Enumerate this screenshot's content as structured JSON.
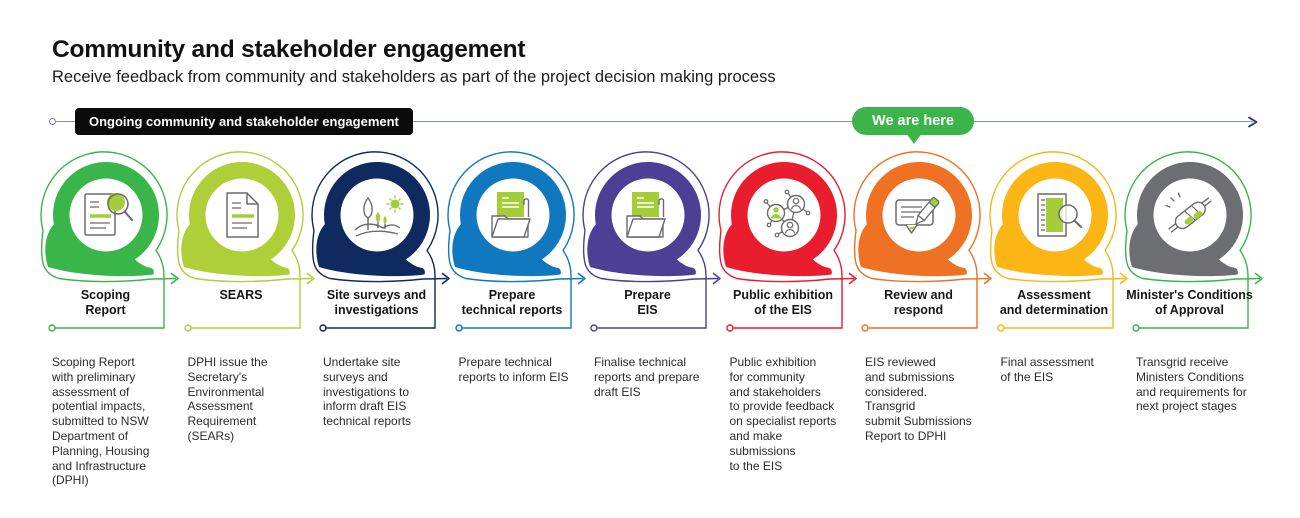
{
  "page": {
    "title": "Community and stakeholder engagement",
    "subtitle": "Receive feedback from community and stakeholders as part of the project decision making process"
  },
  "timeline": {
    "ongoing_badge": "Ongoing community and stakeholder engagement",
    "here_badge": "We are here",
    "line_color": "#8793bb",
    "arrow_color": "#26337b",
    "ongoing_badge_bg": "#0b0b0c",
    "here_badge_bg": "#3bb44a"
  },
  "theme": {
    "background": "#ffffff",
    "text_color": "#1a1a1a",
    "icon_green": "#a4cd39",
    "icon_grey": "#6b6b6b"
  },
  "stages": [
    {
      "name": "scoping-report",
      "label": "Scoping\nReport",
      "description": "Scoping Report\nwith preliminary\nassessment of\npotential impacts,\nsubmitted to NSW\nDepartment of\nPlanning, Housing\nand Infrastructure\n(DPHI)",
      "color": "#3ab54a",
      "outline_color": "#3ab54a",
      "icon": "document-magnifier-icon"
    },
    {
      "name": "sears",
      "label": "SEARS",
      "description": "DPHI issue the\nSecretary's\nEnvironmental\nAssessment\nRequirement\n(SEARs)",
      "color": "#aecf38",
      "outline_color": "#aecf38",
      "icon": "document-icon"
    },
    {
      "name": "site-surveys-and-investigations",
      "label": "Site surveys and\ninvestigations",
      "description": "Undertake site\nsurveys and\ninvestigations to\ninform draft EIS\ntechnical reports",
      "color": "#0e2a5e",
      "outline_color": "#0e2a5e",
      "icon": "landscape-icon"
    },
    {
      "name": "prepare-technical-reports",
      "label": "Prepare\ntechnical reports",
      "description": "Prepare technical\nreports to inform EIS",
      "color": "#0f78bf",
      "outline_color": "#0f78bf",
      "icon": "folder-document-icon"
    },
    {
      "name": "prepare-eis",
      "label": "Prepare\nEIS",
      "description": "Finalise technical\nreports and prepare\ndraft EIS",
      "color": "#4e3f96",
      "outline_color": "#4e3f96",
      "icon": "folder-document-icon"
    },
    {
      "name": "public-exhibition-of-the-eis",
      "label": "Public exhibition\nof the EIS",
      "description": "Public exhibition\nfor community\nand stakeholders\nto provide feedback\non specialist reports\nand make submissions\nto the EIS",
      "color": "#e91d2d",
      "outline_color": "#e91d2d",
      "icon": "people-network-icon"
    },
    {
      "name": "review-and-respond",
      "label": "Review and\nrespond",
      "description": "EIS reviewed\nand submissions\nconsidered. Transgrid\nsubmit Submissions\nReport to DPHI",
      "color": "#ef7123",
      "outline_color": "#ef7123",
      "icon": "feedback-pencil-icon"
    },
    {
      "name": "assessment-and-determination",
      "label": "Assessment\nand determination",
      "description": "Final assessment\nof the EIS",
      "color": "#fbb616",
      "outline_color": "#fbb616",
      "icon": "assessment-magnifier-icon"
    },
    {
      "name": "ministers-conditions-of-approval",
      "label": "Minister's Conditions\nof Approval",
      "description": "Transgrid receive\nMinisters Conditions\nand requirements for\nnext project stages",
      "color": "#6d6e71",
      "outline_color": "#3ab54a",
      "icon": "handshake-icon"
    }
  ]
}
